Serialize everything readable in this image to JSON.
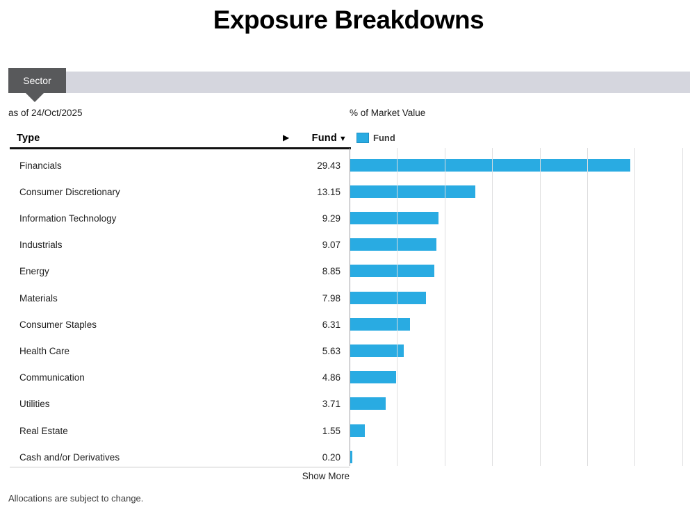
{
  "title": "Exposure Breakdowns",
  "tab": {
    "label": "Sector"
  },
  "as_of": "as of 24/Oct/2025",
  "chart_header": "% of Market Value",
  "table": {
    "type_header": "Type",
    "fund_header": "Fund",
    "sort_icon": "▼",
    "scroll_icon": "▶",
    "show_more": "Show More"
  },
  "legend": {
    "label": "Fund"
  },
  "footer": "Allocations are subject to change.",
  "colors": {
    "bar": "#29abe2",
    "tab": "#58595b",
    "strip": "#d5d6de",
    "gridline": "#dededf"
  },
  "chart_data": {
    "type": "bar",
    "orientation": "horizontal",
    "title": "% of Market Value",
    "legend_entries": [
      "Fund"
    ],
    "legend_position": "top",
    "grid": true,
    "grid_step": 5,
    "xlim": [
      0,
      35.8
    ],
    "categories": [
      "Financials",
      "Consumer Discretionary",
      "Information Technology",
      "Industrials",
      "Energy",
      "Materials",
      "Consumer Staples",
      "Health Care",
      "Communication",
      "Utilities",
      "Real Estate",
      "Cash and/or Derivatives"
    ],
    "series": [
      {
        "name": "Fund",
        "values": [
          29.43,
          13.15,
          9.29,
          9.07,
          8.85,
          7.98,
          6.31,
          5.63,
          4.86,
          3.71,
          1.55,
          0.2
        ]
      }
    ]
  }
}
